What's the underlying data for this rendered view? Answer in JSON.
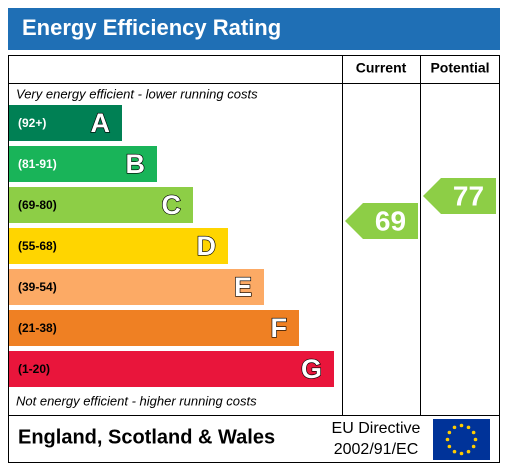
{
  "header": {
    "title": "Energy Efficiency Rating"
  },
  "columns": [
    "Current",
    "Potential"
  ],
  "top_note": "Very energy efficient - lower running costs",
  "bottom_note": "Not energy efficient - higher running costs",
  "bands": [
    {
      "range": "(92+)",
      "letter": "A",
      "color": "#008054"
    },
    {
      "range": "(81-91)",
      "letter": "B",
      "color": "#19b459"
    },
    {
      "range": "(69-80)",
      "letter": "C",
      "color": "#8dce46"
    },
    {
      "range": "(55-68)",
      "letter": "D",
      "color": "#ffd500"
    },
    {
      "range": "(39-54)",
      "letter": "E",
      "color": "#fcaa65"
    },
    {
      "range": "(21-38)",
      "letter": "F",
      "color": "#ef8023"
    },
    {
      "range": "(1-20)",
      "letter": "G",
      "color": "#e9153b"
    }
  ],
  "current": {
    "value": 69,
    "color": "#8dce46"
  },
  "potential": {
    "value": 77,
    "color": "#8dce46"
  },
  "footer": {
    "region": "England, Scotland & Wales",
    "directive": [
      "EU Directive",
      "2002/91/EC"
    ]
  }
}
